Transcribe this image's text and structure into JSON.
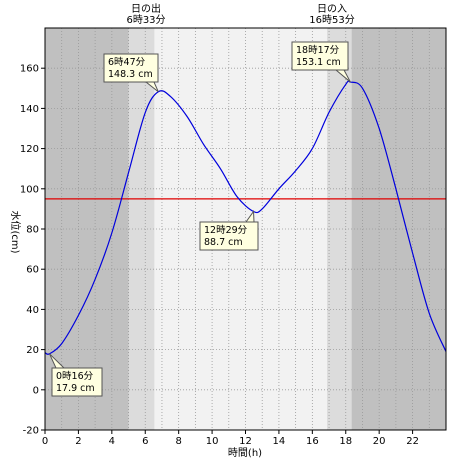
{
  "chart_data": {
    "type": "line",
    "xlabel": "時間(h)",
    "ylabel": "水位(cm)",
    "xlim": [
      0,
      24
    ],
    "ylim": [
      -20,
      180
    ],
    "xticks": [
      "0",
      "2",
      "4",
      "6",
      "8",
      "10",
      "12",
      "14",
      "16",
      "18",
      "20",
      "22"
    ],
    "yticks": [
      "-20",
      "0",
      "20",
      "40",
      "60",
      "80",
      "100",
      "120",
      "140",
      "160"
    ],
    "grid": true,
    "sunrise": {
      "label": "日の出",
      "time": "6時33分",
      "hour": 6.55
    },
    "sunset": {
      "label": "日の入",
      "time": "16時53分",
      "hour": 16.88
    },
    "threshold": {
      "value": 95,
      "color": "#e00000"
    },
    "series": [
      {
        "color": "#0000dd",
        "x": [
          0,
          0.27,
          1,
          2,
          3,
          4,
          5,
          6,
          6.78,
          7.5,
          8.5,
          9.5,
          10.5,
          11.5,
          12.48,
          13,
          14,
          15,
          16,
          17,
          18,
          18.28,
          19,
          20,
          21,
          22,
          23,
          24
        ],
        "y": [
          18.5,
          17.9,
          23,
          37,
          55,
          78,
          108,
          138,
          148.3,
          146,
          136,
          122,
          110,
          96,
          88.7,
          90,
          100,
          109,
          120,
          138,
          152,
          153.1,
          150,
          130,
          100,
          68,
          38,
          19
        ]
      }
    ],
    "annotations": [
      {
        "time": "0時16分",
        "value": "17.9 cm",
        "hour": 0.27,
        "level": 17.9
      },
      {
        "time": "6時47分",
        "value": "148.3 cm",
        "hour": 6.78,
        "level": 148.3
      },
      {
        "time": "12時29分",
        "value": "88.7 cm",
        "hour": 12.48,
        "level": 88.7
      },
      {
        "time": "18時17分",
        "value": "153.1 cm",
        "hour": 18.28,
        "level": 153.1
      }
    ],
    "colors": {
      "night": "#c0c0c0",
      "twilight": "#dcdcdc",
      "day": "#f2f2f2",
      "line": "#0000dd",
      "threshold": "#e00000"
    }
  }
}
